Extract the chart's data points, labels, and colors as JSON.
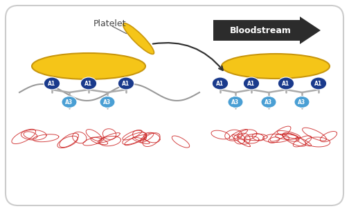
{
  "bg_color": "#ffffff",
  "border_color": "#cccccc",
  "platelet_color": "#F5C518",
  "platelet_shadow": "#c8960c",
  "A1_color": "#1a3a8c",
  "A3_color": "#4a9fd4",
  "connector_color": "#aaaaaa",
  "arrow_color": "#2c2c2c",
  "red_fiber_color": "#cc2222",
  "gray_wave_color": "#999999",
  "label_platelet": "Platelet",
  "label_bloodstream": "Bloodstream",
  "label_A1": "A1",
  "label_A3": "A3"
}
